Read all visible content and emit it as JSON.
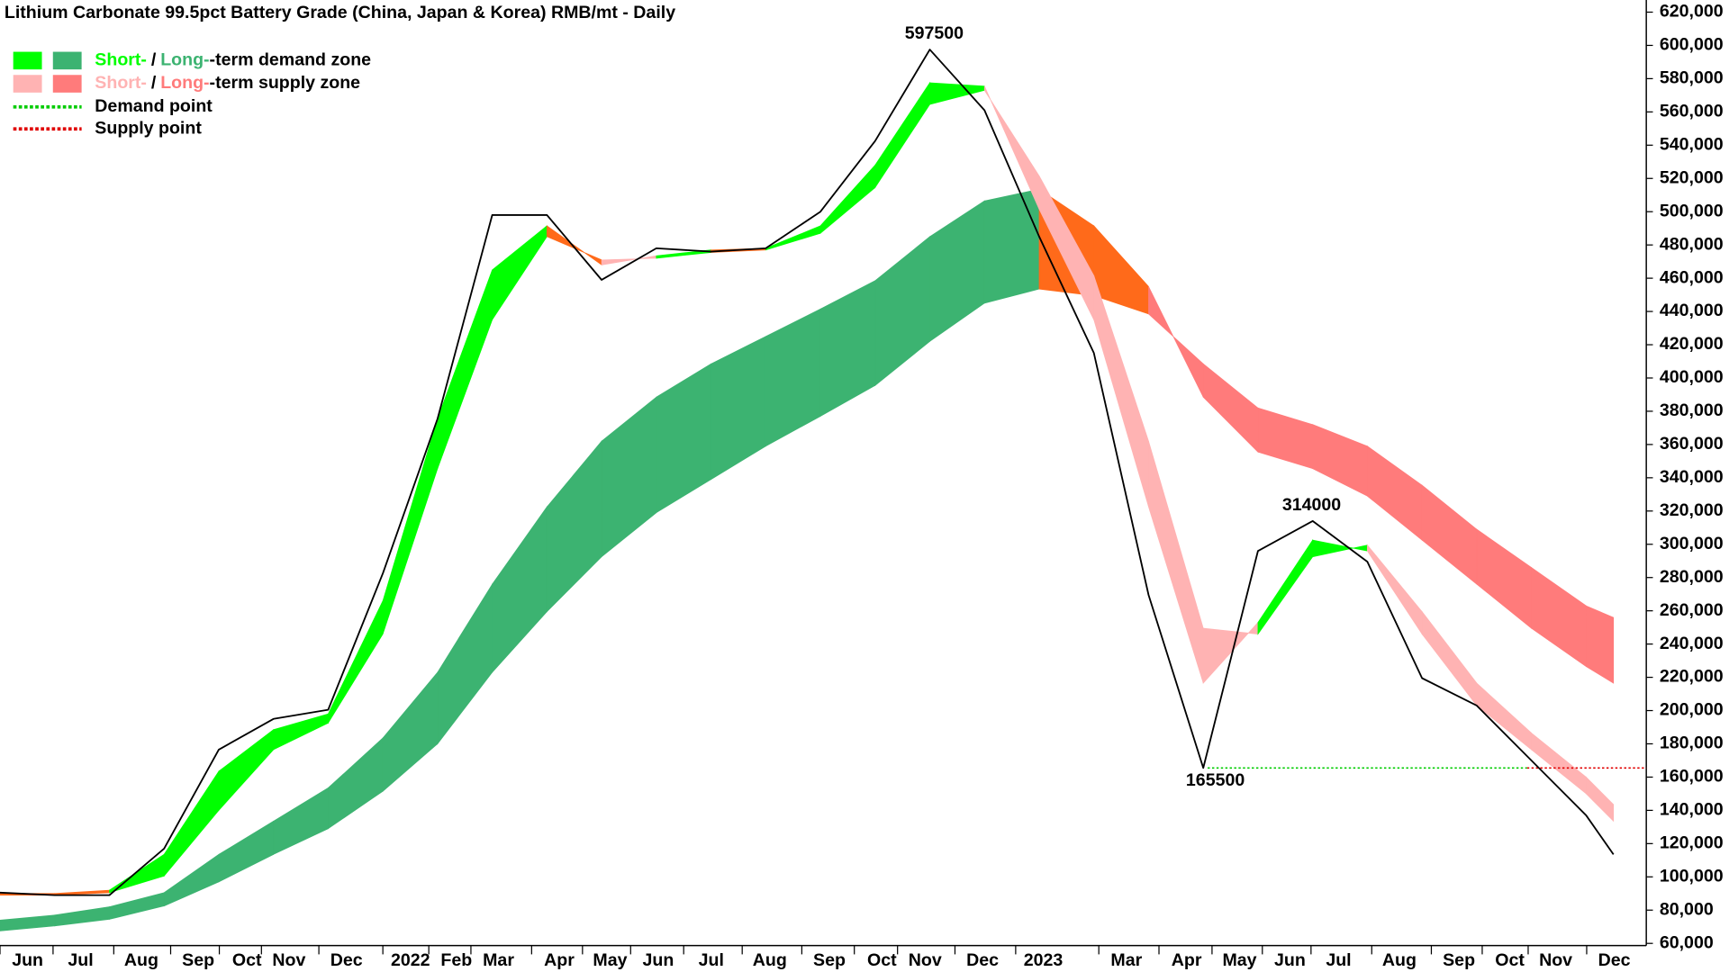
{
  "chart_data": {
    "type": "line",
    "title": "Lithium Carbonate 99.5pct Battery Grade (China, Japan & Korea) RMB/mt - Daily",
    "x": [
      0,
      1,
      2,
      3,
      4,
      5,
      6,
      7,
      8,
      9,
      10,
      11,
      12,
      13,
      14,
      15,
      16,
      17,
      18,
      19,
      20,
      21,
      22,
      23,
      24,
      25,
      26,
      27,
      28,
      29,
      29.5
    ],
    "price": {
      "color": "#000000",
      "values": [
        90500,
        89000,
        89000,
        117000,
        176500,
        195000,
        200500,
        282500,
        375500,
        498000,
        498000,
        459000,
        478000,
        476000,
        478000,
        500000,
        542500,
        597500,
        561000,
        485000,
        415000,
        269500,
        165500,
        296000,
        314000,
        289500,
        219500,
        203000,
        170000,
        137000,
        113500
      ]
    },
    "short_fast": [
      90000,
      90000,
      92000,
      113500,
      163500,
      188500,
      198000,
      266000,
      375500,
      465000,
      491500,
      468000,
      473500,
      477000,
      478000,
      491500,
      528000,
      577500,
      575500,
      501500,
      435000,
      322500,
      216500,
      253000,
      302500,
      296000,
      246000,
      203000,
      176500,
      150000,
      133500
    ],
    "short_slow": [
      89000,
      89000,
      90500,
      100500,
      140000,
      176500,
      192500,
      246000,
      345500,
      435000,
      485000,
      471000,
      472000,
      475500,
      477000,
      487000,
      514500,
      564500,
      573000,
      521500,
      461500,
      362000,
      249500,
      246000,
      292500,
      299500,
      259500,
      216500,
      186500,
      160000,
      143500
    ],
    "long_fast": [
      74000,
      77000,
      82000,
      90500,
      113500,
      133500,
      153500,
      183500,
      223000,
      276000,
      322500,
      362000,
      388500,
      408500,
      425000,
      441500,
      458500,
      485000,
      506500,
      513500,
      491500,
      455000,
      388500,
      355500,
      345500,
      329000,
      302500,
      276000,
      249500,
      226500,
      216500
    ],
    "long_slow": [
      67500,
      70500,
      74500,
      82500,
      97000,
      113500,
      129000,
      151500,
      180000,
      223000,
      259500,
      292500,
      319000,
      339000,
      359000,
      377000,
      395500,
      422000,
      445000,
      453500,
      449500,
      438500,
      408500,
      382000,
      372000,
      359000,
      335500,
      309000,
      286000,
      263000,
      256000
    ],
    "zone_colors": {
      "short_demand": "#00ff00",
      "long_demand": "#3cb371",
      "short_supply": "#ffb3b3",
      "long_supply": "#ff7b7b",
      "transition": "#ff6a1a"
    },
    "demand_point": {
      "value": 165500,
      "x": [
        22.08,
        27.92
      ],
      "color": "#00cc00"
    },
    "supply_point": {
      "value": 165500,
      "x": [
        27.92,
        30.1
      ],
      "color": "#e00000"
    },
    "annotations": [
      {
        "x": 17.0,
        "value": 597500,
        "position": "above"
      },
      {
        "x": 23.9,
        "value": 314000,
        "position": "above"
      },
      {
        "x": 22.14,
        "value": 165500,
        "position": "below"
      }
    ],
    "legend": [
      {
        "parts": [
          "Short-",
          "/",
          "Long-",
          "-term demand zone"
        ]
      },
      {
        "parts": [
          "Short-",
          "/",
          "Long-",
          "-term supply zone"
        ]
      },
      {
        "parts": [
          "Demand point"
        ]
      },
      {
        "parts": [
          "Supply point"
        ]
      }
    ],
    "xlim": [
      0,
      30.1
    ],
    "xticks": [
      {
        "value": 0,
        "label": "Jun"
      },
      {
        "value": 0.97,
        "label": "Jul"
      },
      {
        "value": 2.08,
        "label": "Aug"
      },
      {
        "value": 3.12,
        "label": "Sep"
      },
      {
        "value": 4.01,
        "label": "Oct"
      },
      {
        "value": 4.78,
        "label": "Nov"
      },
      {
        "value": 5.83,
        "label": "Dec"
      },
      {
        "value": 7.0,
        "label": "2022"
      },
      {
        "value": 7.84,
        "label": "Feb"
      },
      {
        "value": 8.61,
        "label": "Mar"
      },
      {
        "value": 9.72,
        "label": "Apr"
      },
      {
        "value": 10.65,
        "label": "May"
      },
      {
        "value": 11.53,
        "label": "Jun"
      },
      {
        "value": 12.5,
        "label": "Jul"
      },
      {
        "value": 13.57,
        "label": "Aug"
      },
      {
        "value": 14.66,
        "label": "Sep"
      },
      {
        "value": 15.62,
        "label": "Oct"
      },
      {
        "value": 16.41,
        "label": "Nov"
      },
      {
        "value": 17.46,
        "label": "Dec"
      },
      {
        "value": 18.57,
        "label": "2023"
      },
      {
        "value": 20.09,
        "label": "Mar"
      },
      {
        "value": 21.19,
        "label": "Apr"
      },
      {
        "value": 22.16,
        "label": "May"
      },
      {
        "value": 23.08,
        "label": "Jun"
      },
      {
        "value": 23.97,
        "label": "Jul"
      },
      {
        "value": 25.08,
        "label": "Aug"
      },
      {
        "value": 26.17,
        "label": "Sep"
      },
      {
        "value": 27.1,
        "label": "Oct"
      },
      {
        "value": 27.94,
        "label": "Nov"
      },
      {
        "value": 29.01,
        "label": "Dec"
      }
    ],
    "ylim": [
      58700,
      627300
    ],
    "yticks": [
      {
        "value": 60000,
        "label": "60,000"
      },
      {
        "value": 80000,
        "label": "80,000"
      },
      {
        "value": 100000,
        "label": "100,000"
      },
      {
        "value": 120000,
        "label": "120,000"
      },
      {
        "value": 140000,
        "label": "140,000"
      },
      {
        "value": 160000,
        "label": "160,000"
      },
      {
        "value": 180000,
        "label": "180,000"
      },
      {
        "value": 200000,
        "label": "200,000"
      },
      {
        "value": 220000,
        "label": "220,000"
      },
      {
        "value": 240000,
        "label": "240,000"
      },
      {
        "value": 260000,
        "label": "260,000"
      },
      {
        "value": 280000,
        "label": "280,000"
      },
      {
        "value": 300000,
        "label": "300,000"
      },
      {
        "value": 320000,
        "label": "320,000"
      },
      {
        "value": 340000,
        "label": "340,000"
      },
      {
        "value": 360000,
        "label": "360,000"
      },
      {
        "value": 380000,
        "label": "380,000"
      },
      {
        "value": 400000,
        "label": "400,000"
      },
      {
        "value": 420000,
        "label": "420,000"
      },
      {
        "value": 440000,
        "label": "440,000"
      },
      {
        "value": 460000,
        "label": "460,000"
      },
      {
        "value": 480000,
        "label": "480,000"
      },
      {
        "value": 500000,
        "label": "500,000"
      },
      {
        "value": 520000,
        "label": "520,000"
      },
      {
        "value": 540000,
        "label": "540,000"
      },
      {
        "value": 560000,
        "label": "560,000"
      },
      {
        "value": 580000,
        "label": "580,000"
      },
      {
        "value": 600000,
        "label": "600,000"
      },
      {
        "value": 620000,
        "label": "620,000"
      }
    ],
    "grid": false
  }
}
